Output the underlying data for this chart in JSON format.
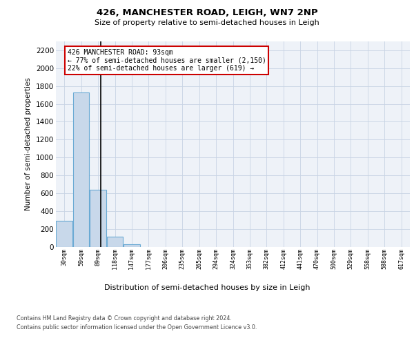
{
  "title1": "426, MANCHESTER ROAD, LEIGH, WN7 2NP",
  "title2": "Size of property relative to semi-detached houses in Leigh",
  "xlabel": "Distribution of semi-detached houses by size in Leigh",
  "ylabel": "Number of semi-detached properties",
  "bin_labels": [
    "30sqm",
    "59sqm",
    "89sqm",
    "118sqm",
    "147sqm",
    "177sqm",
    "206sqm",
    "235sqm",
    "265sqm",
    "294sqm",
    "324sqm",
    "353sqm",
    "382sqm",
    "412sqm",
    "441sqm",
    "470sqm",
    "500sqm",
    "529sqm",
    "558sqm",
    "588sqm",
    "617sqm"
  ],
  "bin_edges": [
    15,
    44.5,
    73.5,
    103.5,
    132.5,
    162,
    191.5,
    220.5,
    250,
    279.5,
    309,
    338.5,
    367.5,
    397,
    426.5,
    455.5,
    485,
    514.5,
    543.5,
    573,
    602.5,
    632
  ],
  "bar_values": [
    290,
    1730,
    640,
    110,
    30,
    0,
    0,
    0,
    0,
    0,
    0,
    0,
    0,
    0,
    0,
    0,
    0,
    0,
    0,
    0,
    0
  ],
  "bar_color": "#c8d8ea",
  "bar_edge_color": "#6aaad4",
  "property_size": 93,
  "property_line_color": "#000000",
  "annotation_line1": "426 MANCHESTER ROAD: 93sqm",
  "annotation_line2": "← 77% of semi-detached houses are smaller (2,150)",
  "annotation_line3": "22% of semi-detached houses are larger (619) →",
  "annotation_box_color": "#cc0000",
  "ylim": [
    0,
    2300
  ],
  "yticks": [
    0,
    200,
    400,
    600,
    800,
    1000,
    1200,
    1400,
    1600,
    1800,
    2000,
    2200
  ],
  "grid_color": "#c8d4e4",
  "bg_color": "#eef2f8",
  "footer1": "Contains HM Land Registry data © Crown copyright and database right 2024.",
  "footer2": "Contains public sector information licensed under the Open Government Licence v3.0."
}
